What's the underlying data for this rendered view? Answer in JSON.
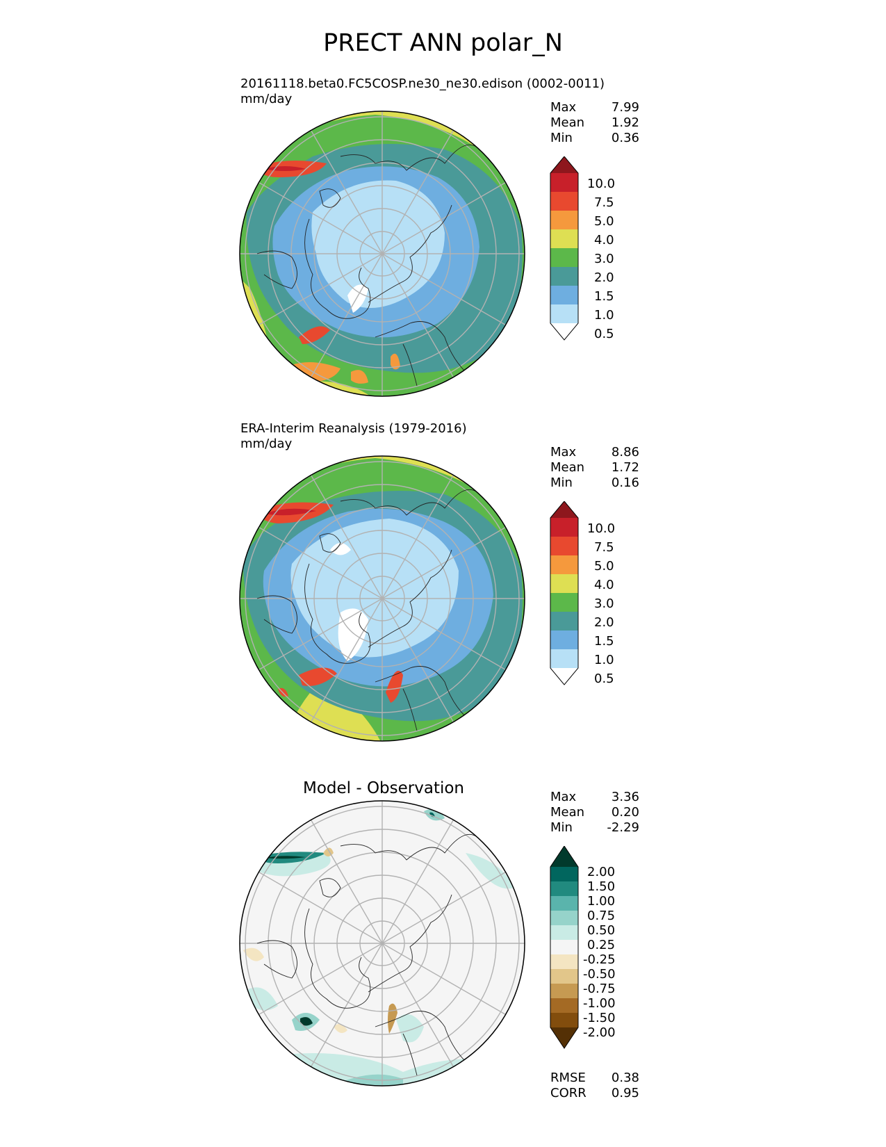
{
  "figure": {
    "title": "PRECT ANN polar_N"
  },
  "panels": [
    {
      "title_line1": "20161118.beta0.FC5COSP.ne30_ne30.edison (0002-0011)",
      "title_line2": "mm/day",
      "stats": [
        {
          "label": "Max",
          "value": "7.99"
        },
        {
          "label": "Mean",
          "value": "1.92"
        },
        {
          "label": "Min",
          "value": "0.36"
        }
      ]
    },
    {
      "title_line1": "ERA-Interim Reanalysis (1979-2016)",
      "title_line2": "mm/day",
      "stats": [
        {
          "label": "Max",
          "value": "8.86"
        },
        {
          "label": "Mean",
          "value": "1.72"
        },
        {
          "label": "Min",
          "value": "0.16"
        }
      ]
    },
    {
      "title": "Model - Observation",
      "stats": [
        {
          "label": "Max",
          "value": "3.36"
        },
        {
          "label": "Mean",
          "value": "0.20"
        },
        {
          "label": "Min",
          "value": "-2.29"
        }
      ],
      "metrics": [
        {
          "label": "RMSE",
          "value": "0.38"
        },
        {
          "label": "CORR",
          "value": "0.95"
        }
      ]
    }
  ],
  "colorbars": {
    "precip": {
      "ticks": [
        "10.0",
        "7.5",
        "5.0",
        "4.0",
        "3.0",
        "2.0",
        "1.5",
        "1.0",
        "0.5"
      ],
      "colors_top_to_bottom": [
        "#8e171d",
        "#c8202a",
        "#e8492f",
        "#f5993d",
        "#dedf53",
        "#5cb84a",
        "#4a9a98",
        "#6eaee0",
        "#b7e0f6",
        "#ffffff"
      ]
    },
    "diff": {
      "ticks": [
        "2.00",
        "1.50",
        "1.00",
        "0.75",
        "0.50",
        "0.25",
        "-0.25",
        "-0.50",
        "-0.75",
        "-1.00",
        "-1.50",
        "-2.00"
      ],
      "colors_top_to_bottom": [
        "#013a2c",
        "#01665e",
        "#218a7f",
        "#5ab4ac",
        "#96d3ca",
        "#c9ebe5",
        "#f5f5f5",
        "#f4e5c2",
        "#e2c68a",
        "#c69a52",
        "#a46a24",
        "#824d0d",
        "#543005"
      ]
    }
  }
}
